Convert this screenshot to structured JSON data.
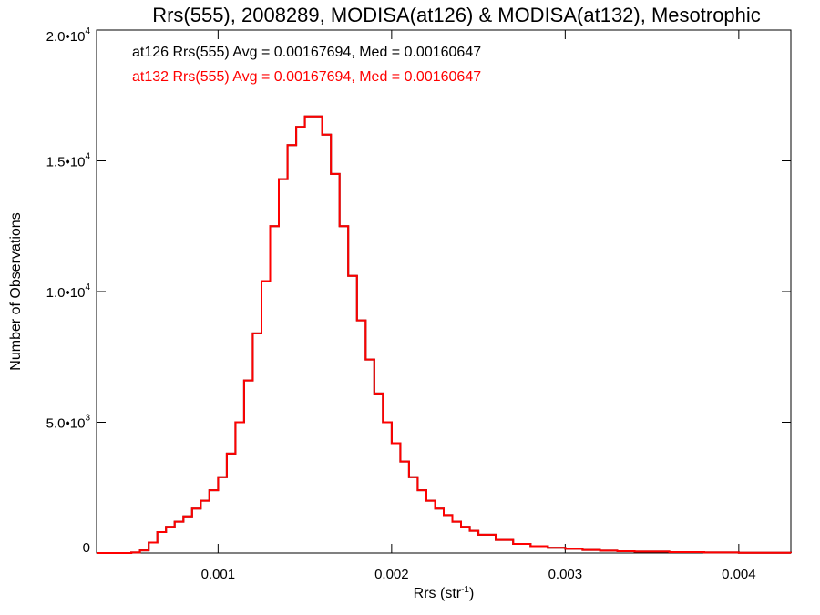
{
  "chart_data": {
    "type": "line",
    "title": "Rrs(555), 2008289, MODISA(at126) & MODISA(at132), Mesotrophic",
    "xlabel": "Rrs (str",
    "xlabel_sup": "-1",
    "xlabel_suffix": ")",
    "ylabel": "Number of Observations",
    "xlim": [
      0.0003,
      0.0043
    ],
    "ylim": [
      0,
      20000
    ],
    "xticks": [
      {
        "value": 0.001,
        "label": "0.001"
      },
      {
        "value": 0.002,
        "label": "0.002"
      },
      {
        "value": 0.003,
        "label": "0.003"
      },
      {
        "value": 0.004,
        "label": "0.004"
      }
    ],
    "yticks": [
      {
        "value": 0,
        "label": "0",
        "exp": ""
      },
      {
        "value": 5000,
        "label": "5.0•10",
        "exp": "3"
      },
      {
        "value": 10000,
        "label": "1.0•10",
        "exp": "4"
      },
      {
        "value": 15000,
        "label": "1.5•10",
        "exp": "4"
      },
      {
        "value": 20000,
        "label": "2.0•10",
        "exp": "4"
      }
    ],
    "series": [
      {
        "name": "at126",
        "color": "#000000",
        "legend": "at126 Rrs(555) Avg = 0.00167694, Med = 0.00160647",
        "x": [
          0.0003,
          0.0004,
          0.0005,
          0.00055,
          0.0006,
          0.00065,
          0.0007,
          0.00075,
          0.0008,
          0.00085,
          0.0009,
          0.00095,
          0.001,
          0.00105,
          0.0011,
          0.00115,
          0.0012,
          0.00125,
          0.0013,
          0.00135,
          0.0014,
          0.00145,
          0.0015,
          0.00155,
          0.0016,
          0.00165,
          0.0017,
          0.00175,
          0.0018,
          0.00185,
          0.0019,
          0.00195,
          0.002,
          0.00205,
          0.0021,
          0.00215,
          0.0022,
          0.00225,
          0.0023,
          0.00235,
          0.0024,
          0.00245,
          0.0025,
          0.0026,
          0.0027,
          0.0028,
          0.0029,
          0.003,
          0.0031,
          0.0032,
          0.0033,
          0.0034,
          0.0036,
          0.0038,
          0.004,
          0.0043
        ],
        "y": [
          0,
          0,
          20,
          100,
          400,
          800,
          1000,
          1200,
          1400,
          1700,
          2000,
          2400,
          2900,
          3800,
          5000,
          6600,
          8400,
          10400,
          12500,
          14300,
          15600,
          16300,
          16700,
          16700,
          16000,
          14500,
          12500,
          10600,
          8900,
          7400,
          6100,
          5000,
          4200,
          3500,
          2900,
          2400,
          2000,
          1700,
          1450,
          1200,
          1000,
          850,
          700,
          500,
          350,
          260,
          200,
          160,
          120,
          90,
          70,
          55,
          35,
          20,
          10,
          5
        ]
      },
      {
        "name": "at132",
        "color": "#ff0000",
        "legend": "at132 Rrs(555) Avg = 0.00167694, Med = 0.00160647",
        "x": [
          0.0003,
          0.0004,
          0.0005,
          0.00055,
          0.0006,
          0.00065,
          0.0007,
          0.00075,
          0.0008,
          0.00085,
          0.0009,
          0.00095,
          0.001,
          0.00105,
          0.0011,
          0.00115,
          0.0012,
          0.00125,
          0.0013,
          0.00135,
          0.0014,
          0.00145,
          0.0015,
          0.00155,
          0.0016,
          0.00165,
          0.0017,
          0.00175,
          0.0018,
          0.00185,
          0.0019,
          0.00195,
          0.002,
          0.00205,
          0.0021,
          0.00215,
          0.0022,
          0.00225,
          0.0023,
          0.00235,
          0.0024,
          0.00245,
          0.0025,
          0.0026,
          0.0027,
          0.0028,
          0.0029,
          0.003,
          0.0031,
          0.0032,
          0.0033,
          0.0034,
          0.0036,
          0.0038,
          0.004,
          0.0043
        ],
        "y": [
          0,
          0,
          20,
          100,
          400,
          800,
          1000,
          1200,
          1400,
          1700,
          2000,
          2400,
          2900,
          3800,
          5000,
          6600,
          8400,
          10400,
          12500,
          14300,
          15600,
          16300,
          16700,
          16700,
          16000,
          14500,
          12500,
          10600,
          8900,
          7400,
          6100,
          5000,
          4200,
          3500,
          2900,
          2400,
          2000,
          1700,
          1450,
          1200,
          1000,
          850,
          700,
          500,
          350,
          260,
          200,
          160,
          120,
          90,
          70,
          55,
          35,
          20,
          10,
          5
        ]
      }
    ]
  }
}
